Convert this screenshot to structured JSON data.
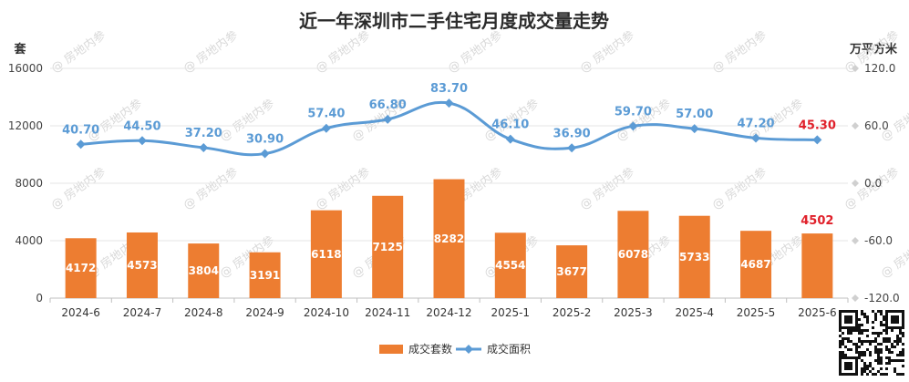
{
  "chart_data": {
    "type": "bar+line",
    "title": "近一年深圳市二手住宅月度成交量走势",
    "left_axis_unit": "套",
    "right_axis_unit": "万平方米",
    "categories": [
      "2024-6",
      "2024-7",
      "2024-8",
      "2024-9",
      "2024-10",
      "2024-11",
      "2024-12",
      "2025-1",
      "2025-2",
      "2025-3",
      "2025-4",
      "2025-5",
      "2025-6"
    ],
    "left_axis": {
      "min": 0,
      "max": 16000,
      "ticks": [
        "0",
        "4000",
        "8000",
        "12000",
        "16000"
      ]
    },
    "right_axis": {
      "min": -120,
      "max": 120,
      "ticks": [
        "-120.0",
        "-60.0",
        "0.0",
        "60.0",
        "120.0"
      ]
    },
    "series": [
      {
        "name": "成交套数",
        "type": "bar",
        "axis": "left",
        "color": "#ed7d31",
        "values": [
          4172,
          4573,
          3804,
          3191,
          6118,
          7125,
          8282,
          4554,
          3677,
          6078,
          5733,
          4687,
          4502
        ],
        "labels": [
          "4172",
          "4573",
          "3804",
          "3191",
          "6118",
          "7125",
          "8282",
          "4554",
          "3677",
          "6078",
          "5733",
          "4687",
          "4502"
        ]
      },
      {
        "name": "成交面积",
        "type": "line",
        "axis": "right",
        "color": "#5b9bd5",
        "values": [
          40.7,
          44.5,
          37.2,
          30.9,
          57.4,
          66.8,
          83.7,
          46.1,
          36.9,
          59.7,
          57.0,
          47.2,
          45.3
        ],
        "labels": [
          "40.70",
          "44.50",
          "37.20",
          "30.90",
          "57.40",
          "66.80",
          "83.70",
          "46.10",
          "36.90",
          "59.70",
          "57.00",
          "47.20",
          "45.30"
        ]
      }
    ],
    "highlight_color": "#e0202a",
    "legend_position": "bottom-center",
    "grid": true
  },
  "watermark": "房地内参"
}
